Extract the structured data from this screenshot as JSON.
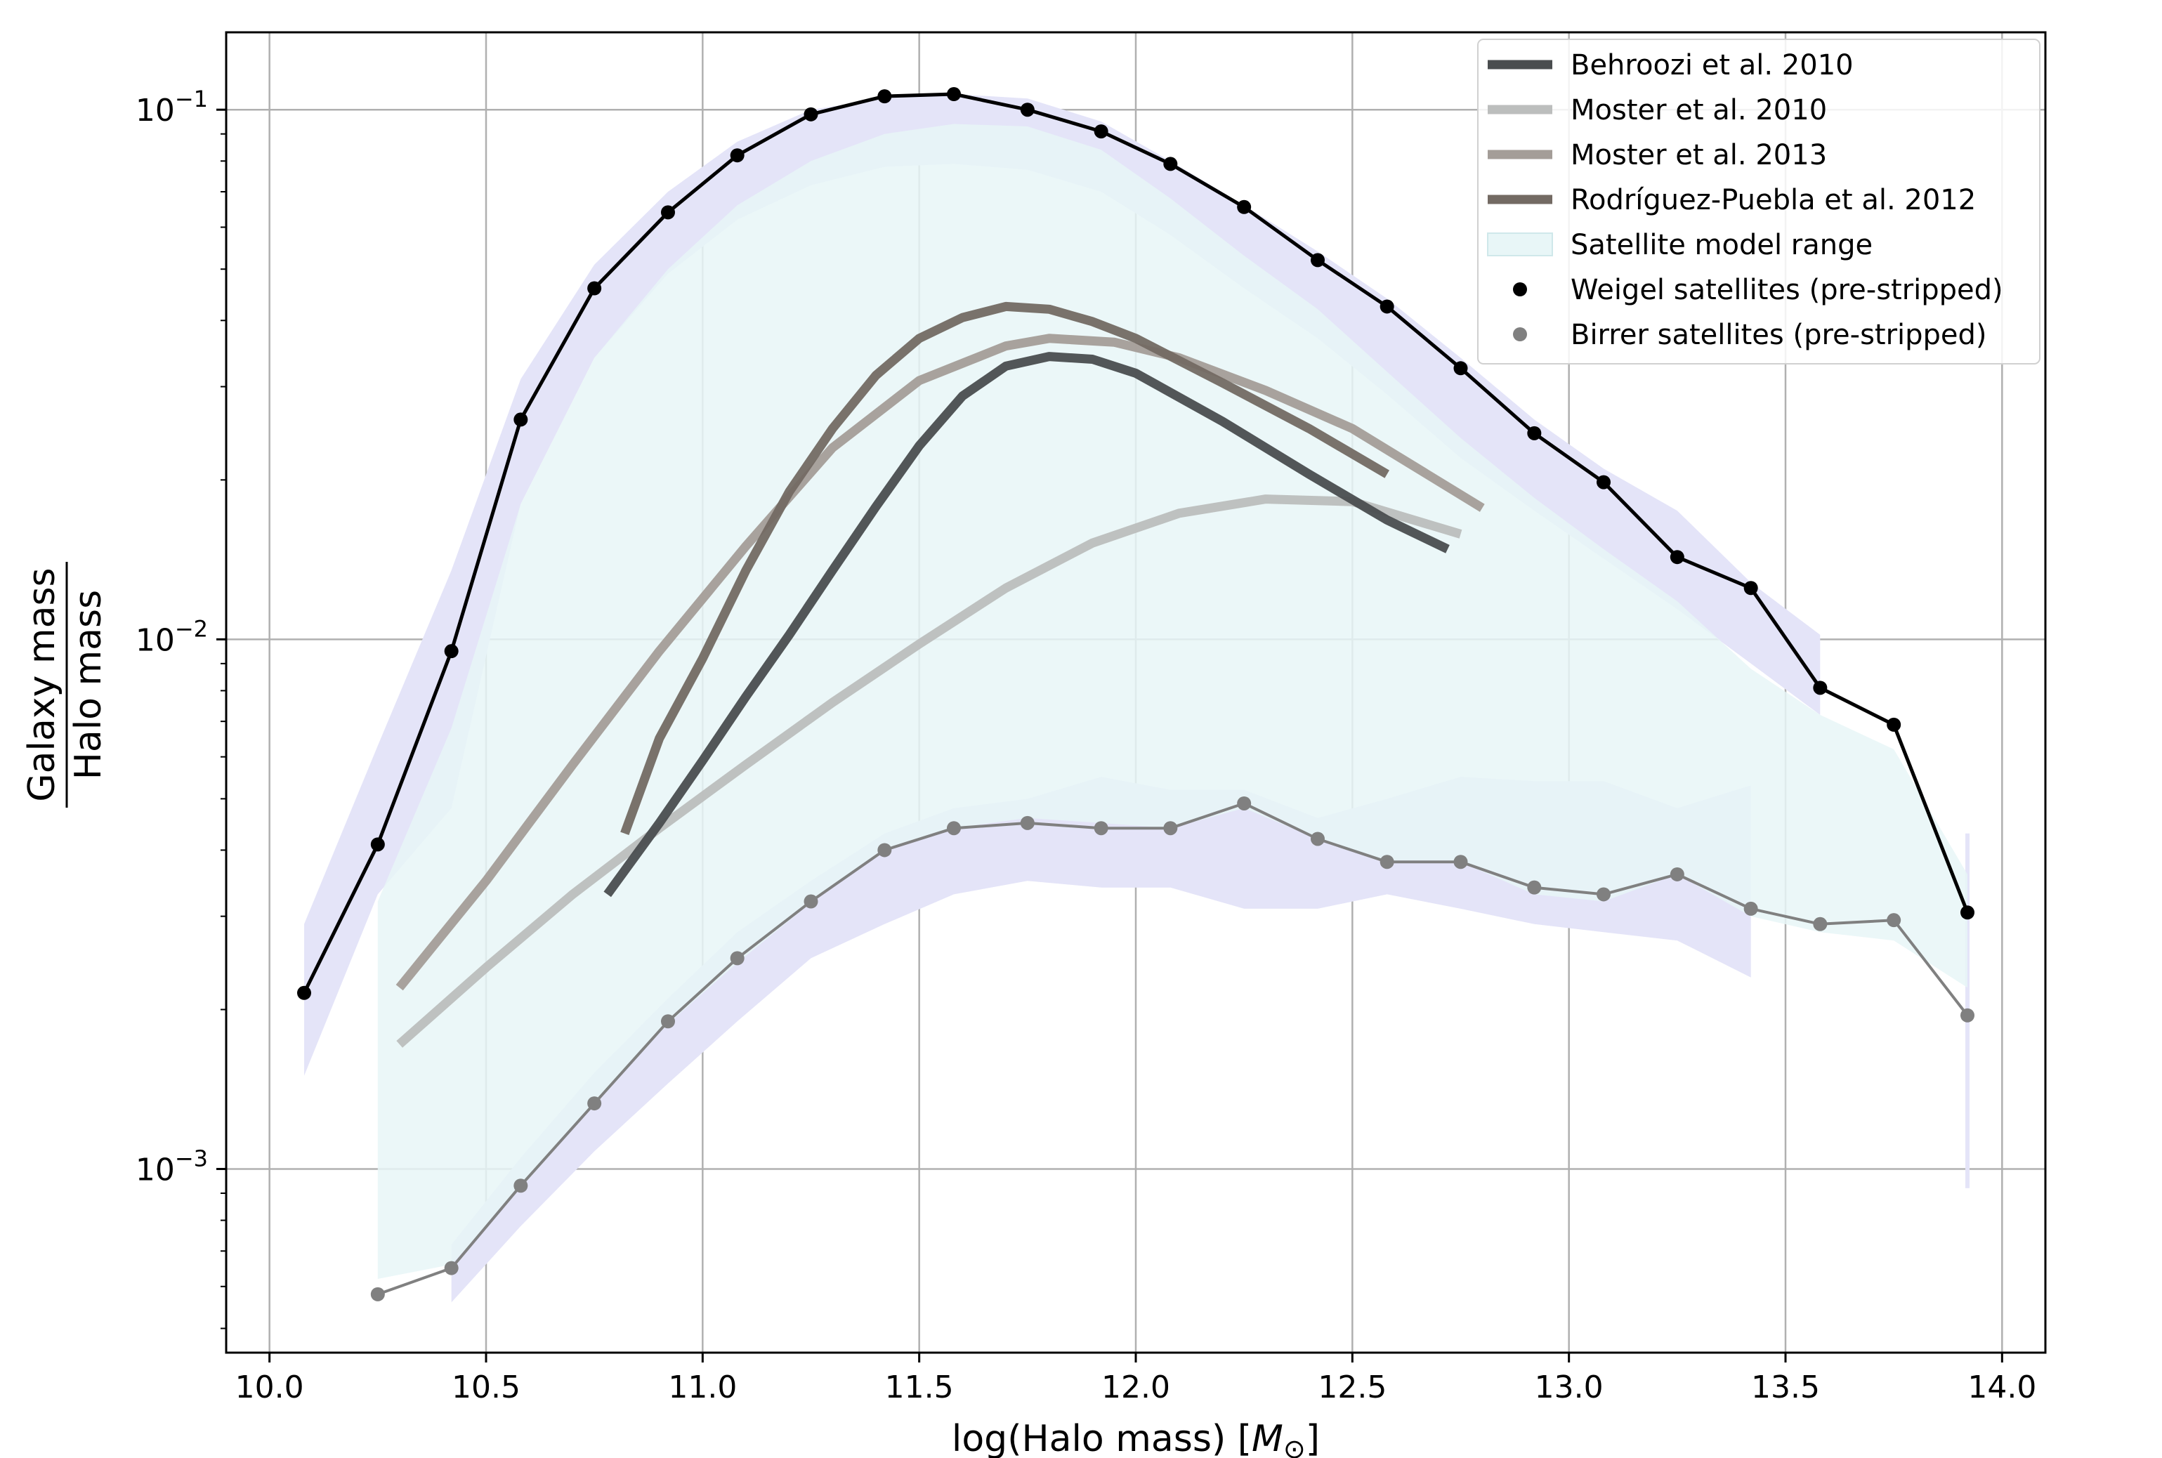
{
  "chart_data": {
    "type": "line",
    "xlabel": "log(Halo mass) [",
    "xlabel_symbol": "M",
    "xlabel_sub": "⊙",
    "xlabel_close": "]",
    "ylabel_numerator": "Galaxy mass",
    "ylabel_denominator": "Halo mass",
    "xlim": [
      9.9,
      14.1
    ],
    "ylim": [
      0.00045,
      0.14
    ],
    "yscale": "log",
    "grid": true,
    "legend_position": "top-right",
    "x_ticks": [
      10.0,
      10.5,
      11.0,
      11.5,
      12.0,
      12.5,
      13.0,
      13.5,
      14.0
    ],
    "x_tick_labels": [
      "10.0",
      "10.5",
      "11.0",
      "11.5",
      "12.0",
      "12.5",
      "13.0",
      "13.5",
      "14.0"
    ],
    "y_ticks": [
      {
        "value": 0.1,
        "base": "10",
        "exp": "−1"
      },
      {
        "value": 0.01,
        "base": "10",
        "exp": "−2"
      },
      {
        "value": 0.001,
        "base": "10",
        "exp": "−3"
      }
    ],
    "colors": {
      "behroozi": "#4a4d4f",
      "moster2010": "#bcbebd",
      "moster2013": "#a49d98",
      "rodriguez": "#736a63",
      "model_fill": "#e8f6f7",
      "band_fill": "#e4e4f8",
      "weigel": "#000000",
      "birrer": "#808080",
      "grid": "#b0b0b0"
    },
    "legend": [
      {
        "key": "behroozi",
        "label": "Behroozi et al. 2010",
        "kind": "line"
      },
      {
        "key": "moster2010",
        "label": "Moster et al. 2010",
        "kind": "line"
      },
      {
        "key": "moster2013",
        "label": "Moster et al. 2013",
        "kind": "line"
      },
      {
        "key": "rodriguez",
        "label": "Rodríguez-Puebla et al. 2012",
        "kind": "line"
      },
      {
        "key": "model_fill",
        "label": "Satellite model range",
        "kind": "patch"
      },
      {
        "key": "weigel",
        "label": "Weigel satellites (pre-stripped)",
        "kind": "marker"
      },
      {
        "key": "birrer",
        "label": "Birrer satellites (pre-stripped)",
        "kind": "marker"
      }
    ],
    "model_range": {
      "x": [
        10.25,
        10.42,
        10.58,
        10.75,
        10.92,
        11.08,
        11.25,
        11.42,
        11.58,
        11.75,
        11.92,
        12.08,
        12.25,
        12.42,
        12.58,
        12.75,
        12.92,
        13.08,
        13.25,
        13.42,
        13.58,
        13.75,
        13.92
      ],
      "upper": [
        0.0032,
        0.0068,
        0.018,
        0.034,
        0.05,
        0.066,
        0.08,
        0.09,
        0.094,
        0.093,
        0.084,
        0.068,
        0.053,
        0.042,
        0.032,
        0.024,
        0.0185,
        0.0148,
        0.0118,
        0.0088,
        0.0072,
        0.0062,
        0.0036
      ],
      "lower": [
        0.00062,
        0.00066,
        0.00092,
        0.00132,
        0.00188,
        0.00245,
        0.00318,
        0.004,
        0.0044,
        0.0046,
        0.0045,
        0.0044,
        0.0048,
        0.0042,
        0.0038,
        0.0038,
        0.0033,
        0.0032,
        0.0036,
        0.003,
        0.0028,
        0.0027,
        0.0022
      ]
    },
    "weigel_band": {
      "x": [
        10.08,
        10.25,
        10.42,
        10.58,
        10.75,
        10.92,
        11.08,
        11.25,
        11.42,
        11.58,
        11.75,
        11.92,
        12.08,
        12.25,
        12.42,
        12.58,
        12.75,
        12.92,
        13.08,
        13.25,
        13.42,
        13.58
      ],
      "upper": [
        0.0029,
        0.0063,
        0.0135,
        0.031,
        0.051,
        0.07,
        0.087,
        0.1,
        0.105,
        0.107,
        0.105,
        0.095,
        0.08,
        0.066,
        0.054,
        0.044,
        0.034,
        0.026,
        0.021,
        0.0175,
        0.0128,
        0.0102
      ],
      "lower": [
        0.0015,
        0.0033,
        0.0048,
        0.018,
        0.034,
        0.049,
        0.062,
        0.072,
        0.078,
        0.079,
        0.077,
        0.07,
        0.058,
        0.046,
        0.037,
        0.029,
        0.022,
        0.0175,
        0.0142,
        0.0114,
        0.009,
        0.0072
      ]
    },
    "birrer_band": {
      "x": [
        10.42,
        10.58,
        10.75,
        10.92,
        11.08,
        11.25,
        11.42,
        11.58,
        11.75,
        11.92,
        12.08,
        12.25,
        12.42,
        12.58,
        12.75,
        12.92,
        13.08,
        13.25,
        13.42
      ],
      "upper": [
        0.00072,
        0.00105,
        0.00152,
        0.0021,
        0.0028,
        0.0035,
        0.0043,
        0.0048,
        0.005,
        0.0055,
        0.0052,
        0.0052,
        0.0046,
        0.005,
        0.0055,
        0.0054,
        0.0054,
        0.0048,
        0.0053
      ],
      "lower": [
        0.00056,
        0.00078,
        0.00108,
        0.00145,
        0.0019,
        0.0025,
        0.0029,
        0.0033,
        0.0035,
        0.0034,
        0.0034,
        0.0031,
        0.0031,
        0.0033,
        0.0031,
        0.0029,
        0.0028,
        0.0027,
        0.0023
      ]
    },
    "band_stub": {
      "x": 13.92,
      "upper": 0.0043,
      "lower": 0.00092
    },
    "series": [
      {
        "key": "moster2010",
        "name": "Moster et al. 2010",
        "x": [
          10.3,
          10.5,
          10.7,
          10.9,
          11.1,
          11.3,
          11.5,
          11.7,
          11.9,
          12.1,
          12.3,
          12.5,
          12.75
        ],
        "y": [
          0.00172,
          0.0024,
          0.0033,
          0.0044,
          0.0058,
          0.0076,
          0.0098,
          0.0125,
          0.0152,
          0.0173,
          0.0184,
          0.0182,
          0.0158
        ]
      },
      {
        "key": "moster2013",
        "name": "Moster et al. 2013",
        "x": [
          10.3,
          10.5,
          10.7,
          10.9,
          11.1,
          11.3,
          11.5,
          11.7,
          11.8,
          11.95,
          12.1,
          12.3,
          12.5,
          12.8
        ],
        "y": [
          0.0022,
          0.0035,
          0.0058,
          0.0095,
          0.015,
          0.023,
          0.0308,
          0.0358,
          0.037,
          0.0364,
          0.034,
          0.0295,
          0.025,
          0.0177
        ]
      },
      {
        "key": "rodriguez",
        "name": "Rodríguez-Puebla et al. 2012",
        "x": [
          10.82,
          10.9,
          11.0,
          11.1,
          11.2,
          11.3,
          11.4,
          11.5,
          11.6,
          11.7,
          11.8,
          11.9,
          12.0,
          12.2,
          12.4,
          12.58
        ],
        "y": [
          0.0043,
          0.0065,
          0.0092,
          0.0135,
          0.019,
          0.025,
          0.0315,
          0.037,
          0.0405,
          0.0425,
          0.042,
          0.0398,
          0.037,
          0.0305,
          0.025,
          0.0205
        ]
      },
      {
        "key": "behroozi",
        "name": "Behroozi et al. 2010",
        "x": [
          10.78,
          10.9,
          11.0,
          11.1,
          11.2,
          11.3,
          11.4,
          11.5,
          11.6,
          11.7,
          11.8,
          11.9,
          12.0,
          12.2,
          12.4,
          12.58,
          12.72
        ],
        "y": [
          0.0033,
          0.0045,
          0.0059,
          0.0078,
          0.0102,
          0.0135,
          0.0178,
          0.0232,
          0.0288,
          0.0328,
          0.0342,
          0.0338,
          0.0318,
          0.0258,
          0.0205,
          0.0168,
          0.0148
        ]
      }
    ],
    "weigel": {
      "name": "Weigel satellites (pre-stripped)",
      "x": [
        10.08,
        10.25,
        10.42,
        10.58,
        10.75,
        10.92,
        11.08,
        11.25,
        11.42,
        11.58,
        11.75,
        11.92,
        12.08,
        12.25,
        12.42,
        12.58,
        12.75,
        12.92,
        13.08,
        13.25,
        13.42,
        13.58,
        13.75,
        13.92
      ],
      "y": [
        0.00215,
        0.0041,
        0.0095,
        0.026,
        0.046,
        0.064,
        0.082,
        0.098,
        0.106,
        0.107,
        0.1,
        0.091,
        0.079,
        0.0655,
        0.052,
        0.0425,
        0.0325,
        0.0245,
        0.0198,
        0.0143,
        0.0125,
        0.0081,
        0.0069,
        0.00305
      ]
    },
    "birrer": {
      "name": "Birrer satellites (pre-stripped)",
      "x": [
        10.25,
        10.42,
        10.58,
        10.75,
        10.92,
        11.08,
        11.25,
        11.42,
        11.58,
        11.75,
        11.92,
        12.08,
        12.25,
        12.42,
        12.58,
        12.75,
        12.92,
        13.08,
        13.25,
        13.42,
        13.58,
        13.75,
        13.92
      ],
      "y": [
        0.00058,
        0.00065,
        0.00093,
        0.00133,
        0.0019,
        0.0025,
        0.0032,
        0.004,
        0.0044,
        0.0045,
        0.0044,
        0.0044,
        0.0049,
        0.0042,
        0.0038,
        0.0038,
        0.0034,
        0.0033,
        0.0036,
        0.0031,
        0.0029,
        0.00295,
        0.00195
      ]
    }
  }
}
